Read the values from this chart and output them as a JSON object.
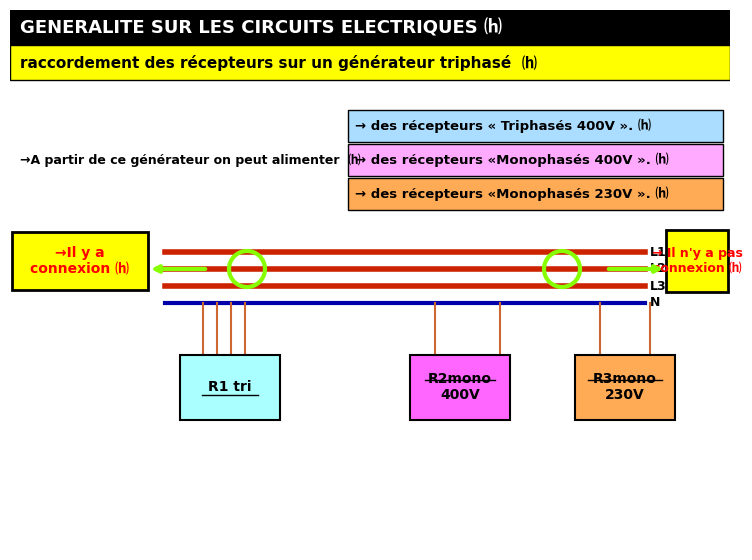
{
  "title": "GENERALITE SUR LES CIRCUITS ELECTRIQUES ⒣",
  "subtitle": "raccordement des récepteurs sur un générateur triphasé  ⒣",
  "title_bg": "#000000",
  "title_fg": "#ffffff",
  "subtitle_bg": "#ffff00",
  "subtitle_fg": "#000000",
  "info_text_left": "→A partir de ce générateur on peut alimenter  ⒣",
  "info_line1": "→ des récepteurs « Triphasés 400V ». ⒣",
  "info_line2": "→ des récepteurs «Monophasés 400V ». ⒣",
  "info_line3": "→ des récepteurs «Monophasés 230V ». ⒣",
  "info_bg1": "#aaddff",
  "info_bg2": "#ffaaff",
  "info_bg3": "#ffaa55",
  "left_box_text": "→Il y a\nconnexion ⒣",
  "left_box_bg": "#ffff00",
  "left_box_fg": "#ff0000",
  "right_box_text": "→ Il n'y a pas\nconnexion ⒣",
  "right_box_bg": "#ffff00",
  "right_box_fg": "#ff0000",
  "line_colors": [
    "#cc2200",
    "#cc2200",
    "#cc2200",
    "#0000aa"
  ],
  "line_labels": [
    "L1",
    "L2",
    "L3",
    "N"
  ],
  "r1_label": "R1 tri",
  "r2_label": "R2mono\n400V",
  "r3_label": "R3mono\n230V",
  "r1_bg": "#aaffff",
  "r2_bg": "#ff66ff",
  "r3_bg": "#ffaa55",
  "wire_color": "#cc6633",
  "circle_color": "#88ff00",
  "arrow_color": "#88ff00"
}
